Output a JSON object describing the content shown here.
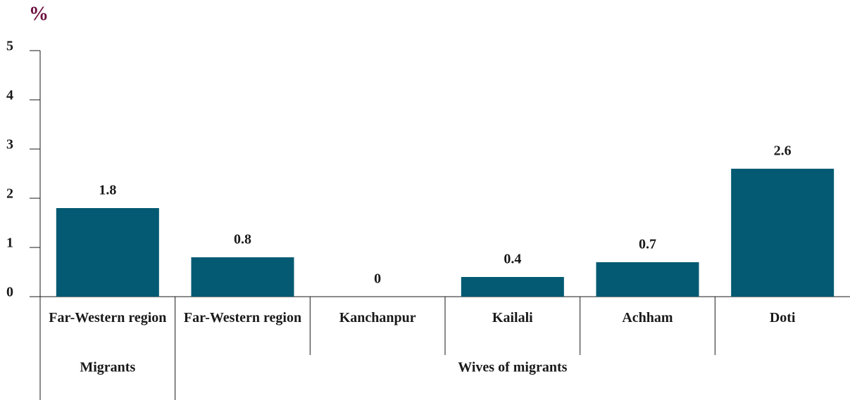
{
  "chart_data": {
    "type": "bar",
    "y_label": "%",
    "categories": [
      "Far-Western region",
      "Far-Western region",
      "Kanchanpur",
      "Kailali",
      "Achham",
      "Doti"
    ],
    "groups": [
      "Migrants",
      "Wives of migrants",
      "Wives of migrants",
      "Wives of migrants",
      "Wives of migrants",
      "Wives of migrants"
    ],
    "values": [
      1.8,
      0.8,
      0,
      0.4,
      0.7,
      2.6
    ],
    "color": "#035a72",
    "ylim": [
      0,
      5
    ],
    "yticks": [
      0,
      1,
      2,
      3,
      4,
      5
    ]
  }
}
